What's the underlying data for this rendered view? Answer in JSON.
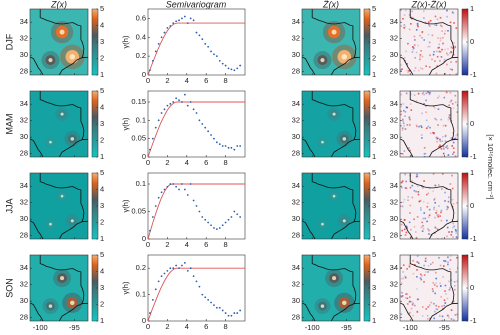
{
  "chart_data": {
    "type": "panelgrid",
    "column_titles": [
      "Z(x)",
      "Semivariogram",
      "Ẑ(x)",
      "Z(x)-Ẑ(x)"
    ],
    "colorbar_label": "[× 10¹⁵molec. cm⁻²]",
    "ylabel": "γ(h)",
    "map": {
      "xlim": [
        -101.5,
        -93
      ],
      "ylim": [
        27.6,
        35.6
      ],
      "xticks": [
        -100,
        -95
      ],
      "yticks": [
        28,
        30,
        32,
        34
      ]
    },
    "colorbar": {
      "lim": [
        1,
        5
      ],
      "ticks": [
        1,
        2,
        3,
        4,
        5
      ]
    },
    "error_colorbar": {
      "lim": [
        -1,
        1
      ],
      "ticks": [
        -1,
        0,
        1
      ]
    },
    "xlim": [
      0,
      10
    ],
    "xticks": [
      0,
      2,
      4,
      6,
      8
    ],
    "x": [
      0.2,
      0.5,
      0.8,
      1.1,
      1.4,
      1.7,
      2.0,
      2.3,
      2.6,
      2.9,
      3.2,
      3.5,
      3.8,
      4.1,
      4.4,
      4.7,
      5.0,
      5.3,
      5.6,
      5.9,
      6.2,
      6.5,
      6.8,
      7.1,
      7.4,
      7.7,
      8.0,
      8.3,
      8.6,
      8.9,
      9.2,
      9.5
    ],
    "rows": [
      {
        "label": "DJF",
        "background": "#3cb6b0",
        "ylim": [
          0,
          0.7
        ],
        "yticks": [
          0,
          0.2,
          0.4,
          0.6
        ],
        "sill": 0.55,
        "range": 3,
        "values": [
          0.05,
          0.15,
          0.25,
          0.33,
          0.4,
          0.45,
          0.5,
          0.52,
          0.55,
          0.57,
          0.58,
          0.6,
          0.62,
          0.55,
          0.6,
          0.58,
          0.45,
          0.42,
          0.38,
          0.33,
          0.3,
          0.25,
          0.22,
          0.2,
          0.15,
          0.12,
          0.1,
          0.07,
          0.06,
          0.05,
          0.07,
          0.1
        ],
        "hotspots": [
          {
            "lon": -95.3,
            "lat": 29.8,
            "value": 5
          },
          {
            "lon": -96.8,
            "lat": 32.8,
            "value": 4.5
          },
          {
            "lon": -98.5,
            "lat": 29.4,
            "value": 3.5
          }
        ]
      },
      {
        "label": "MAM",
        "background": "#14a3a2",
        "ylim": [
          0,
          0.18
        ],
        "yticks": [
          0,
          0.05,
          0.1,
          0.15
        ],
        "sill": 0.15,
        "range": 3,
        "values": [
          0.02,
          0.05,
          0.08,
          0.1,
          0.12,
          0.13,
          0.14,
          0.145,
          0.15,
          0.16,
          0.155,
          0.15,
          0.17,
          0.14,
          0.15,
          0.13,
          0.12,
          0.1,
          0.09,
          0.08,
          0.07,
          0.06,
          0.05,
          0.04,
          0.035,
          0.03,
          0.03,
          0.025,
          0.025,
          0.02,
          0.03,
          0.03
        ],
        "hotspots": [
          {
            "lon": -95.3,
            "lat": 29.8,
            "value": 3
          },
          {
            "lon": -96.8,
            "lat": 32.8,
            "value": 2.5
          },
          {
            "lon": -98.5,
            "lat": 29.4,
            "value": 2
          }
        ]
      },
      {
        "label": "JJA",
        "background": "#10a0a0",
        "ylim": [
          0,
          0.12
        ],
        "yticks": [
          0,
          0.05,
          0.1
        ],
        "sill": 0.1,
        "range": 2.5,
        "values": [
          0.015,
          0.04,
          0.06,
          0.075,
          0.085,
          0.09,
          0.095,
          0.1,
          0.1,
          0.095,
          0.09,
          0.1,
          0.09,
          0.08,
          0.1,
          0.07,
          0.06,
          0.05,
          0.04,
          0.035,
          0.03,
          0.025,
          0.02,
          0.018,
          0.02,
          0.025,
          0.03,
          0.035,
          0.04,
          0.05,
          0.045,
          0.04
        ],
        "hotspots": [
          {
            "lon": -95.3,
            "lat": 29.8,
            "value": 2.5
          },
          {
            "lon": -96.8,
            "lat": 32.8,
            "value": 2
          },
          {
            "lon": -98.5,
            "lat": 29.4,
            "value": 2
          }
        ]
      },
      {
        "label": "SON",
        "background": "#22aeaa",
        "ylim": [
          0,
          0.25
        ],
        "yticks": [
          0,
          0.1,
          0.2
        ],
        "sill": 0.2,
        "range": 3,
        "values": [
          0.03,
          0.08,
          0.12,
          0.15,
          0.17,
          0.18,
          0.19,
          0.2,
          0.2,
          0.21,
          0.2,
          0.21,
          0.22,
          0.19,
          0.2,
          0.17,
          0.15,
          0.13,
          0.1,
          0.09,
          0.08,
          0.07,
          0.06,
          0.05,
          0.05,
          0.04,
          0.03,
          0.02,
          0.02,
          0.03,
          0.03,
          0.04
        ],
        "hotspots": [
          {
            "lon": -95.3,
            "lat": 29.8,
            "value": 4
          },
          {
            "lon": -96.8,
            "lat": 32.8,
            "value": 3.5
          },
          {
            "lon": -98.5,
            "lat": 29.4,
            "value": 3
          }
        ]
      }
    ]
  }
}
